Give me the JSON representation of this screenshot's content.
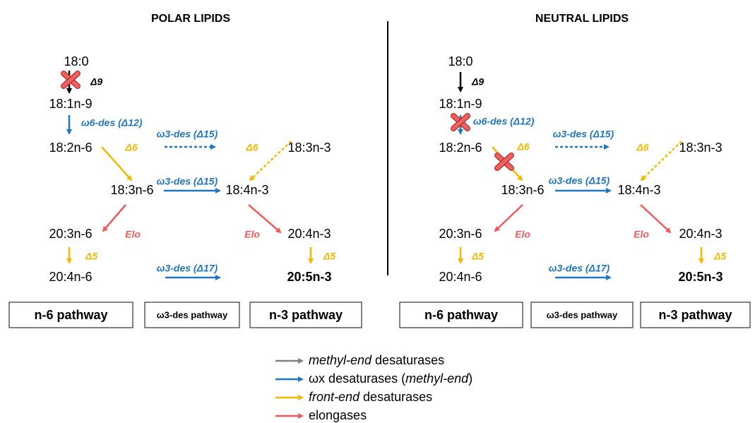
{
  "panels": [
    {
      "title": "POLAR LIPIDS",
      "nodes": [
        "18:0",
        "18:1n-9",
        "18:2n-6",
        "18:3n-6",
        "18:4n-3",
        "18:3n-3",
        "20:3n-6",
        "20:4n-3",
        "20:4n-6",
        "20:5n-3"
      ],
      "enzymes": [
        "Δ9",
        "ω6-des (Δ12)",
        "Δ6",
        "ω3-des (Δ15)",
        "Δ6",
        "ω3-des (Δ15)",
        "Elo",
        "Elo",
        "Δ5",
        "Δ5",
        "ω3-des (Δ17)"
      ],
      "boxes": [
        "n-6 pathway",
        "ω3-des pathway",
        "n-3 pathway"
      ]
    },
    {
      "title": "NEUTRAL LIPIDS",
      "nodes": [
        "18:0",
        "18:1n-9",
        "18:2n-6",
        "18:3n-6",
        "18:4n-3",
        "18:3n-3",
        "20:3n-6",
        "20:4n-3",
        "20:4n-6",
        "20:5n-3"
      ],
      "enzymes": [
        "Δ9",
        "ω6-des (Δ12)",
        "Δ6",
        "ω3-des (Δ15)",
        "Δ6",
        "ω3-des (Δ15)",
        "Elo",
        "Elo",
        "Δ5",
        "Δ5",
        "ω3-des (Δ17)"
      ],
      "boxes": [
        "n-6 pathway",
        "ω3-des pathway",
        "n-3 pathway"
      ]
    }
  ],
  "legend": [
    [
      {
        "text": "methyl-end",
        "italic": true
      },
      {
        "text": " desaturases"
      }
    ],
    [
      {
        "text": "ωx desaturases ("
      },
      {
        "text": "methyl-end",
        "italic": true
      },
      {
        "text": ")"
      }
    ],
    [
      {
        "text": "front-end",
        "italic": true
      },
      {
        "text": " desaturases"
      }
    ],
    [
      {
        "text": "elongases"
      }
    ]
  ]
}
